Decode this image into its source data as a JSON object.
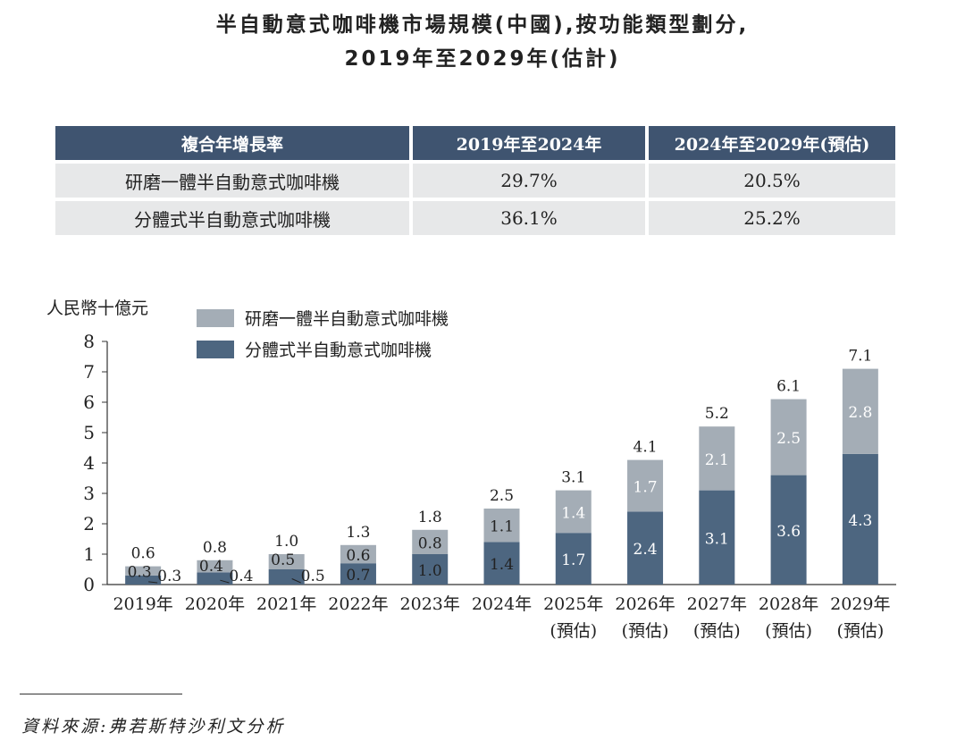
{
  "title_line1": "半自動意式咖啡機市場規模(中國),按功能類型劃分,",
  "title_line2": "2019年至2029年(估計)",
  "cagr_table": {
    "headers": [
      "複合年增長率",
      "2019年至2024年",
      "2024年至2029年(預估)"
    ],
    "rows": [
      [
        "研磨一體半自動意式咖啡機",
        "29.7%",
        "20.5%"
      ],
      [
        "分體式半自動意式咖啡機",
        "36.1%",
        "25.2%"
      ]
    ]
  },
  "chart_data": {
    "type": "bar",
    "stacked": true,
    "ylabel": "人民幣十億元",
    "ylim": [
      0,
      8
    ],
    "yticks": [
      0,
      1,
      2,
      3,
      4,
      5,
      6,
      7,
      8
    ],
    "categories": [
      "2019年",
      "2020年",
      "2021年",
      "2022年",
      "2023年",
      "2024年",
      "2025年",
      "2026年",
      "2027年",
      "2028年",
      "2029年"
    ],
    "category_sublabels": [
      "",
      "",
      "",
      "",
      "",
      "",
      "(預估)",
      "(預估)",
      "(預估)",
      "(預估)",
      "(預估)"
    ],
    "series": [
      {
        "name": "分體式半自動意式咖啡機",
        "color": "#4d6680",
        "values": [
          0.3,
          0.4,
          0.5,
          0.7,
          1.0,
          1.4,
          1.7,
          2.4,
          3.1,
          3.6,
          4.3
        ]
      },
      {
        "name": "研磨一體半自動意式咖啡機",
        "color": "#a4adb6",
        "values": [
          0.3,
          0.4,
          0.5,
          0.6,
          0.8,
          1.1,
          1.4,
          1.7,
          2.1,
          2.5,
          2.8
        ]
      }
    ],
    "totals": [
      0.6,
      0.8,
      1.0,
      1.3,
      1.8,
      2.5,
      3.1,
      4.1,
      5.2,
      6.1,
      7.1
    ],
    "legend": [
      {
        "name": "研磨一體半自動意式咖啡機",
        "color": "#a4adb6"
      },
      {
        "name": "分體式半自動意式咖啡機",
        "color": "#4d6680"
      }
    ],
    "legend_position": "top-left"
  },
  "source": "資料來源:弗若斯特沙利文分析"
}
